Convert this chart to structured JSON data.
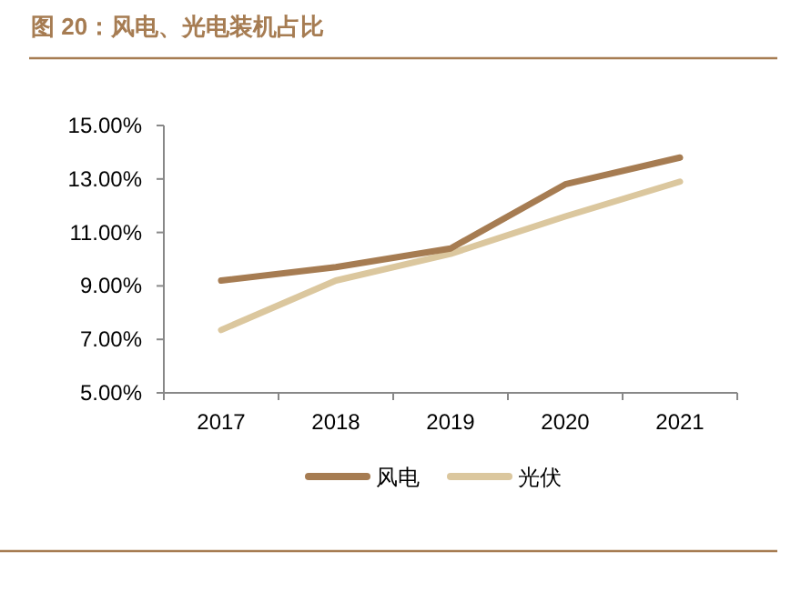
{
  "chart_data": {
    "type": "line",
    "title": "图 20：风电、光电装机占比",
    "categories": [
      "2017",
      "2018",
      "2019",
      "2020",
      "2021"
    ],
    "series": [
      {
        "name": "风电",
        "color": "#a67c52",
        "values": [
          9.2,
          9.7,
          10.4,
          12.8,
          13.8
        ]
      },
      {
        "name": "光伏",
        "color": "#dbc79e",
        "values": [
          7.35,
          9.2,
          10.2,
          11.6,
          12.9
        ]
      }
    ],
    "ylim": [
      5,
      15
    ],
    "yticks": [
      {
        "value": 5,
        "label": "5.00%"
      },
      {
        "value": 7,
        "label": "7.00%"
      },
      {
        "value": 9,
        "label": "9.00%"
      },
      {
        "value": 11,
        "label": "11.00%"
      },
      {
        "value": 13,
        "label": "13.00%"
      },
      {
        "value": 15,
        "label": "15.00%"
      }
    ],
    "grid": false,
    "legend": "bottom",
    "marker": "none",
    "line_style": "solid"
  }
}
